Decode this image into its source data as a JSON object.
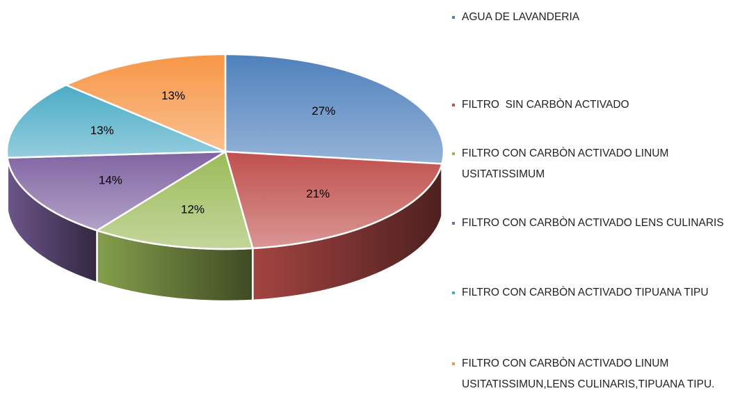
{
  "chart_data": {
    "type": "pie3d",
    "categories": [
      "AGUA DE LAVANDERIA",
      "FILTRO  SIN CARBÒN ACTIVADO",
      "FILTRO CON CARBÒN ACTIVADO LINUM USITATISSIMUM",
      "FILTRO CON CARBÒN ACTIVADO LENS CULINARIS",
      "FILTRO CON CARBÒN ACTIVADO TIPUANA TIPU",
      "FILTRO CON CARBÒN ACTIVADO LINUM USITATISSIMUN,LENS CULINARIS,TIPUANA TIPU."
    ],
    "values": [
      27,
      21,
      12,
      14,
      13,
      13
    ],
    "value_labels": [
      "27%",
      "21%",
      "12%",
      "14%",
      "13%",
      "13%"
    ],
    "colors": [
      "#4f81bd",
      "#c0504d",
      "#9bbb59",
      "#8064a2",
      "#4bacc6",
      "#f79646"
    ],
    "legend": "right"
  }
}
